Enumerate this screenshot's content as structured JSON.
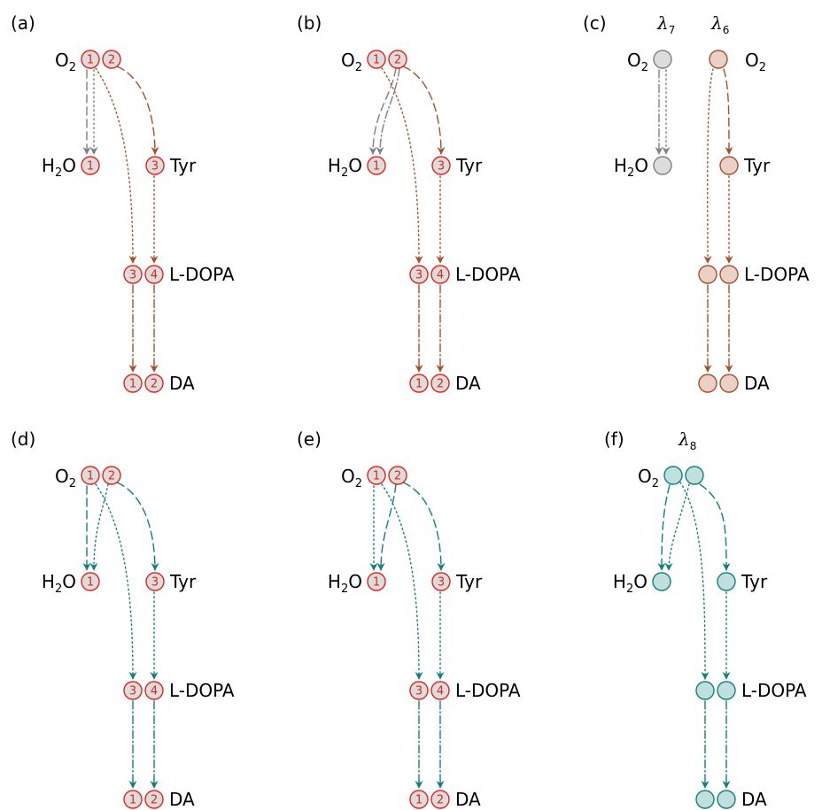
{
  "colors": {
    "gray": "#808080",
    "brown": "#a0522d",
    "teal": "#127f7f",
    "node_red_stroke": "#e2231a",
    "node_red_fill": "#dcdcdc",
    "node_gray_fill": "#dcdcdc",
    "node_gray_stroke": "#808080",
    "node_brown_fill": "#ead0c5",
    "node_brown_stroke": "#a0522d",
    "node_teal_fill": "#bfe0dd",
    "node_teal_stroke": "#127f7f"
  },
  "species": {
    "o2": "O",
    "o2_sub": "2",
    "h2o_pre": "H",
    "h2o_sub": "2",
    "h2o_post": "O",
    "tyr": "Tyr",
    "ldopa": "L-DOPA",
    "da": "DA"
  },
  "panels": [
    {
      "id": "a",
      "label": "(a)",
      "arrow_color": "brown",
      "numbered": true
    },
    {
      "id": "b",
      "label": "(b)",
      "arrow_color": "brown",
      "numbered": true
    },
    {
      "id": "c",
      "label": "(c)",
      "arrow_color": "brown",
      "numbered": false,
      "lambdas": [
        {
          "sym": "λ",
          "sub": "7"
        },
        {
          "sym": "λ",
          "sub": "6"
        }
      ]
    },
    {
      "id": "d",
      "label": "(d)",
      "arrow_color": "teal",
      "numbered": true
    },
    {
      "id": "e",
      "label": "(e)",
      "arrow_color": "teal",
      "numbered": true
    },
    {
      "id": "f",
      "label": "(f)",
      "arrow_color": "teal",
      "numbered": false,
      "lambdas": [
        {
          "sym": "λ",
          "sub": "8"
        }
      ]
    }
  ],
  "node_numbers": {
    "o2": [
      "1",
      "2"
    ],
    "h2o": [
      "1"
    ],
    "tyr": [
      "3"
    ],
    "ldopa": [
      "3",
      "4"
    ],
    "da": [
      "1",
      "2"
    ]
  }
}
